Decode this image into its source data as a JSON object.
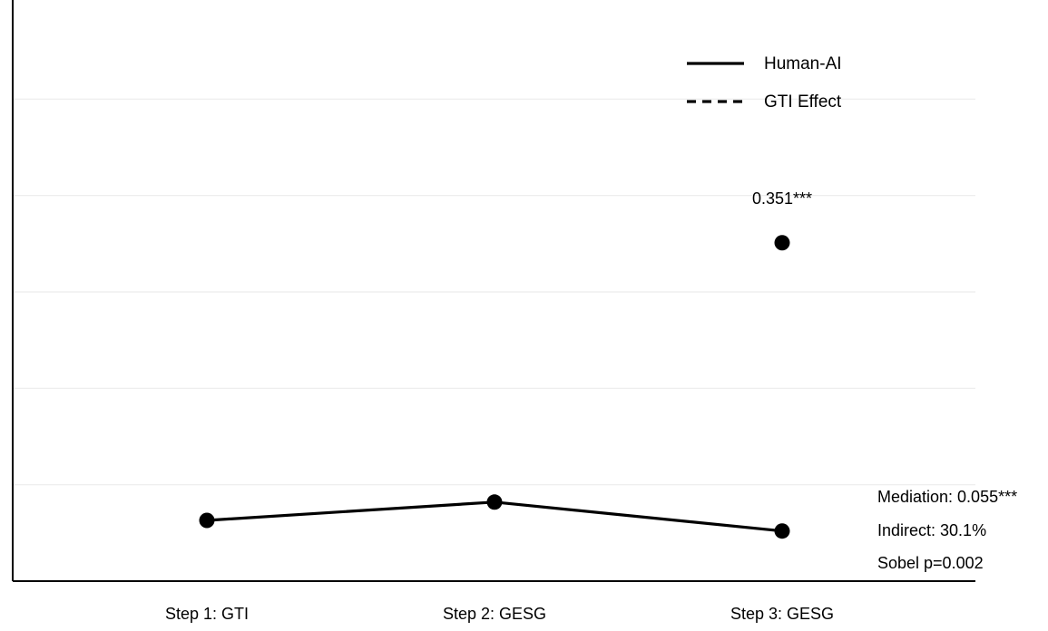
{
  "chart_data": {
    "type": "line",
    "categories": [
      "Step 1: GTI",
      "Step 2: GESG",
      "Step 3: GESG"
    ],
    "ylim": [
      0,
      0.6
    ],
    "grid": true,
    "legend_position": "top-right",
    "series": [
      {
        "name": "Human-AI",
        "line_style": "solid",
        "color": "#000000",
        "values": [
          0.063,
          0.082,
          0.052
        ],
        "error": [
          0.007,
          0.007,
          0.007
        ],
        "connected": true
      },
      {
        "name": "GTI Effect",
        "line_style": "dashed",
        "color": "#000000",
        "values": [
          null,
          null,
          0.351
        ],
        "error": [
          null,
          null,
          0.007
        ],
        "connected": false
      }
    ],
    "data_labels": [
      {
        "series": "GTI Effect",
        "category": "Step 3: GESG",
        "text": "0.351***"
      }
    ],
    "annotations": [
      "Mediation: 0.055***",
      "Indirect: 30.1%",
      "Sobel p=0.002"
    ]
  }
}
